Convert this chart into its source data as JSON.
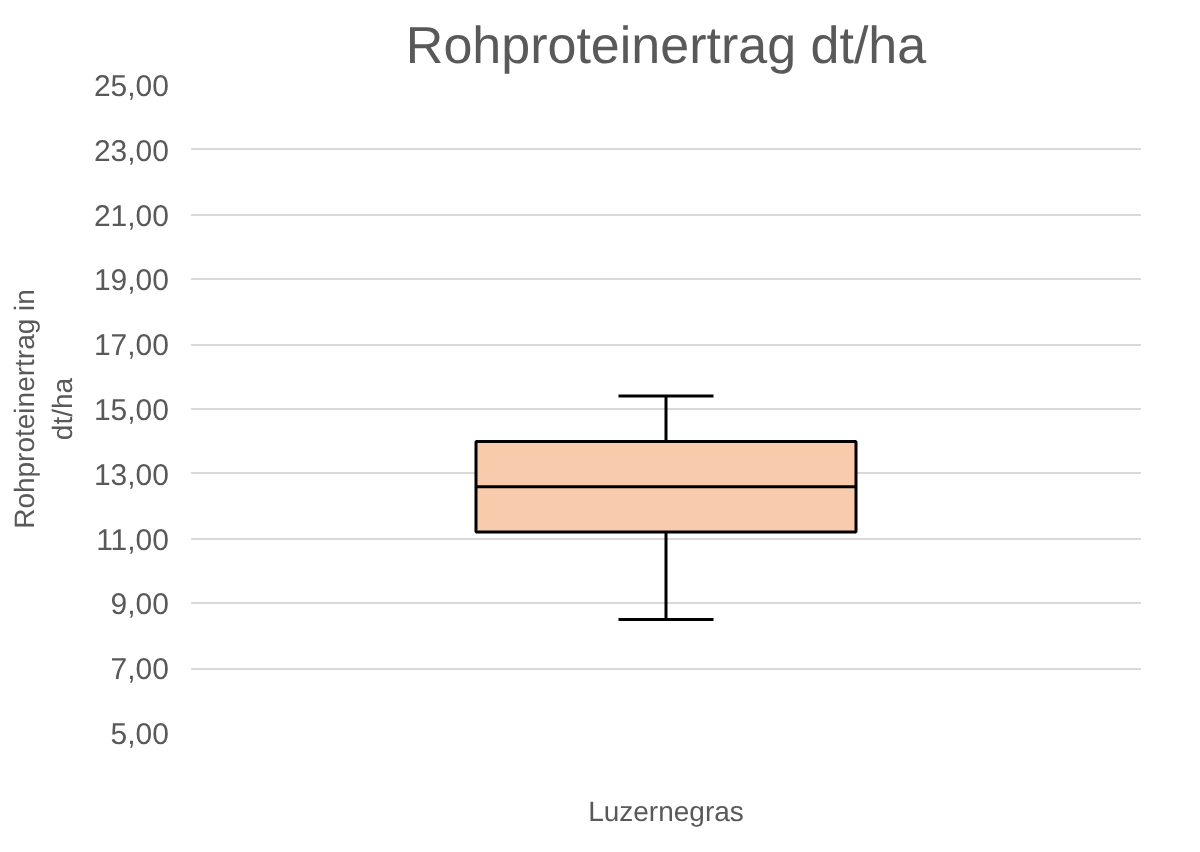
{
  "chart_data": {
    "type": "box",
    "title": "Rohproteinertrag dt/ha",
    "ylabel": "Rohproteinertrag in dt/ha",
    "categories": [
      "Luzernegras"
    ],
    "boxes": [
      {
        "low": 8.5,
        "q1": 11.2,
        "median": 12.6,
        "q3": 14.0,
        "high": 15.4
      }
    ],
    "color": "#f8cbad",
    "ylim": [
      5,
      25
    ],
    "yticks": [
      {
        "value": 5,
        "label": "5,00"
      },
      {
        "value": 7,
        "label": "7,00"
      },
      {
        "value": 9,
        "label": "9,00"
      },
      {
        "value": 11,
        "label": "11,00"
      },
      {
        "value": 13,
        "label": "13,00"
      },
      {
        "value": 15,
        "label": "15,00"
      },
      {
        "value": 17,
        "label": "17,00"
      },
      {
        "value": 19,
        "label": "19,00"
      },
      {
        "value": 21,
        "label": "21,00"
      },
      {
        "value": 23,
        "label": "23,00"
      },
      {
        "value": 25,
        "label": "25,00"
      }
    ],
    "grid": "y"
  }
}
